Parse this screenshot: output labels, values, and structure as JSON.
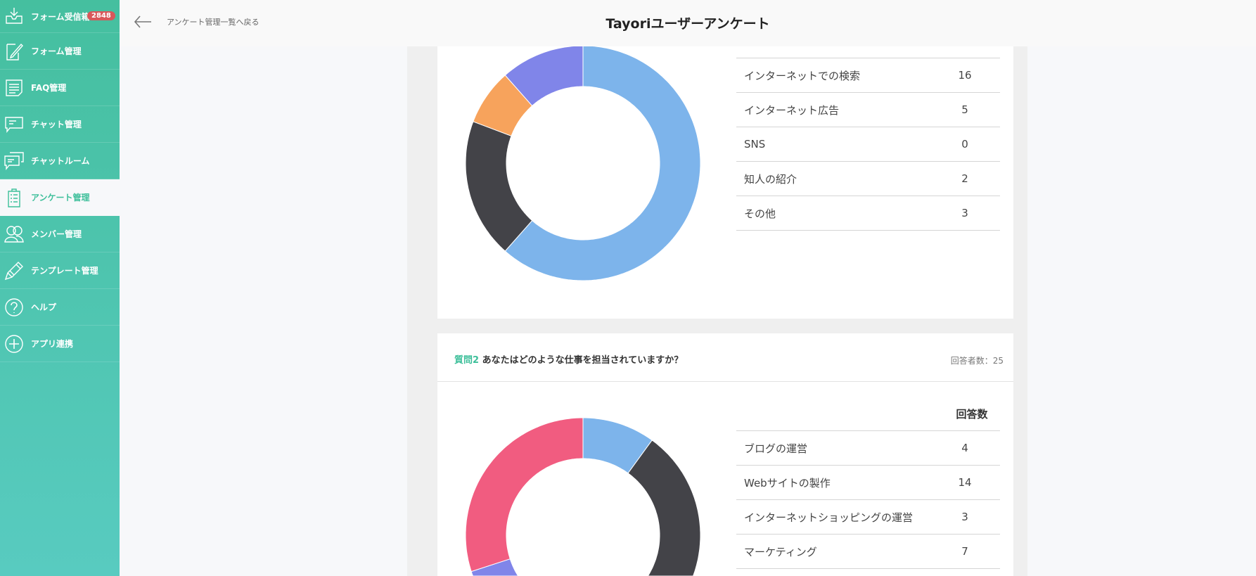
{
  "sidebar": {
    "items": [
      {
        "label": "フォーム受信箱",
        "icon": "inbox-icon",
        "badge": "2848"
      },
      {
        "label": "フォーム管理",
        "icon": "form-edit-icon"
      },
      {
        "label": "FAQ管理",
        "icon": "faq-icon"
      },
      {
        "label": "チャット管理",
        "icon": "chat-icon"
      },
      {
        "label": "チャットルーム",
        "icon": "chat-room-icon"
      },
      {
        "label": "アンケート管理",
        "icon": "clipboard-icon",
        "active": true
      },
      {
        "label": "メンバー管理",
        "icon": "members-icon"
      },
      {
        "label": "テンプレート管理",
        "icon": "pencil-icon"
      },
      {
        "label": "ヘルプ",
        "icon": "help-icon"
      },
      {
        "label": "アプリ連携",
        "icon": "plus-circle-icon"
      }
    ]
  },
  "header": {
    "back_label": "アンケート管理一覧へ戻る",
    "title": "Tayoriユーザーアンケート"
  },
  "colors": {
    "accent": "#3dbf9a",
    "segments": [
      "#7db4eb",
      "#434348",
      "#f7a35c",
      "#8085e9",
      "#f15c80"
    ]
  },
  "chart_data": [
    {
      "type": "pie",
      "donut": true,
      "rows": [
        {
          "label": "インターネットでの検索",
          "value": 16,
          "color": "#7db4eb"
        },
        {
          "label": "インターネット広告",
          "value": 5,
          "color": "#434348"
        },
        {
          "label": "SNS",
          "value": 0,
          "color": "#90ed7d"
        },
        {
          "label": "知人の紹介",
          "value": 2,
          "color": "#f7a35c"
        },
        {
          "label": "その他",
          "value": 3,
          "color": "#8085e9"
        }
      ]
    },
    {
      "type": "pie",
      "donut": true,
      "question_label": "質問2",
      "question": "あなたはどのような仕事を担当されていますか？",
      "respondents": "回答者数：25",
      "column_header": "回答数",
      "rows": [
        {
          "label": "ブログの運営",
          "value": 4,
          "color": "#7db4eb"
        },
        {
          "label": "Webサイトの製作",
          "value": 14,
          "color": "#434348"
        },
        {
          "label": "インターネットショッピングの運営",
          "value": 3,
          "color": "#f7a35c"
        },
        {
          "label": "マーケティング",
          "value": 7,
          "color": "#8085e9"
        }
      ]
    }
  ]
}
